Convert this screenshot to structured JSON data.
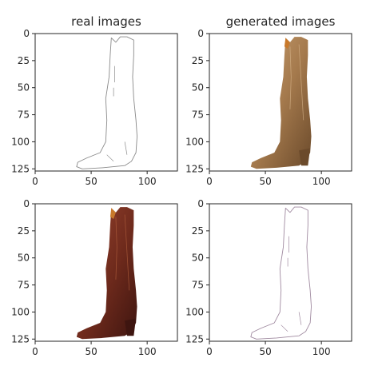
{
  "chart_data": [
    {
      "type": "image",
      "title": "real images",
      "xlabel": "",
      "ylabel": "",
      "xlim": [
        0,
        127
      ],
      "ylim": [
        127,
        0
      ],
      "xticks": [
        0,
        50,
        100
      ],
      "yticks": [
        0,
        25,
        50,
        75,
        100,
        125
      ],
      "image_content": "boot-sketch"
    },
    {
      "type": "image",
      "title": "generated images",
      "xlabel": "",
      "ylabel": "",
      "xlim": [
        0,
        127
      ],
      "ylim": [
        127,
        0
      ],
      "xticks": [
        0,
        50,
        100
      ],
      "yticks": [
        0,
        25,
        50,
        75,
        100,
        125
      ],
      "image_content": "boot-photo-tan"
    },
    {
      "type": "image",
      "title": "",
      "xlabel": "",
      "ylabel": "",
      "xlim": [
        0,
        127
      ],
      "ylim": [
        127,
        0
      ],
      "xticks": [
        0,
        50,
        100
      ],
      "yticks": [
        0,
        25,
        50,
        75,
        100,
        125
      ],
      "image_content": "boot-photo-brown"
    },
    {
      "type": "image",
      "title": "",
      "xlabel": "",
      "ylabel": "",
      "xlim": [
        0,
        127
      ],
      "ylim": [
        127,
        0
      ],
      "xticks": [
        0,
        50,
        100
      ],
      "yticks": [
        0,
        25,
        50,
        75,
        100,
        125
      ],
      "image_content": "boot-sketch-generated"
    }
  ],
  "colors": {
    "axis": "#262626",
    "sketch_stroke": "#8a8a8a",
    "generated_sketch_stroke": "#a08aa0",
    "tan_boot_light": "#b89063",
    "tan_boot_dark": "#6b4a2b",
    "brown_boot_light": "#8a3a26",
    "brown_boot_dark": "#3e1510",
    "accent_orange": "#c8792b"
  }
}
